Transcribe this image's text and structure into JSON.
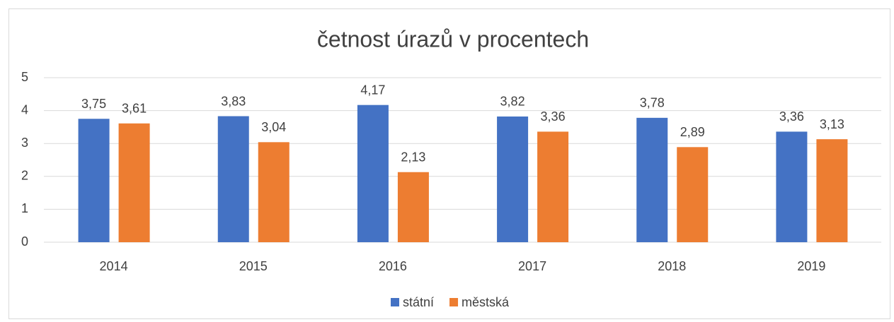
{
  "chart_data": {
    "type": "bar",
    "title": "četnost úrazů v procentech",
    "categories": [
      "2014",
      "2015",
      "2016",
      "2017",
      "2018",
      "2019"
    ],
    "series": [
      {
        "name": "státní",
        "color": "#4472c4",
        "values": [
          3.75,
          3.83,
          4.17,
          3.82,
          3.78,
          3.36
        ],
        "value_labels": [
          "3,75",
          "3,83",
          "4,17",
          "3,82",
          "3,78",
          "3,36"
        ]
      },
      {
        "name": "městská",
        "color": "#ed7d31",
        "values": [
          3.61,
          3.04,
          2.13,
          3.36,
          2.89,
          3.13
        ],
        "value_labels": [
          "3,61",
          "3,04",
          "2,13",
          "3,36",
          "2,89",
          "3,13"
        ]
      }
    ],
    "ylim": [
      0,
      5
    ],
    "yticks": [
      0,
      1,
      2,
      3,
      4,
      5
    ],
    "grid": true,
    "legend": "bottom"
  }
}
